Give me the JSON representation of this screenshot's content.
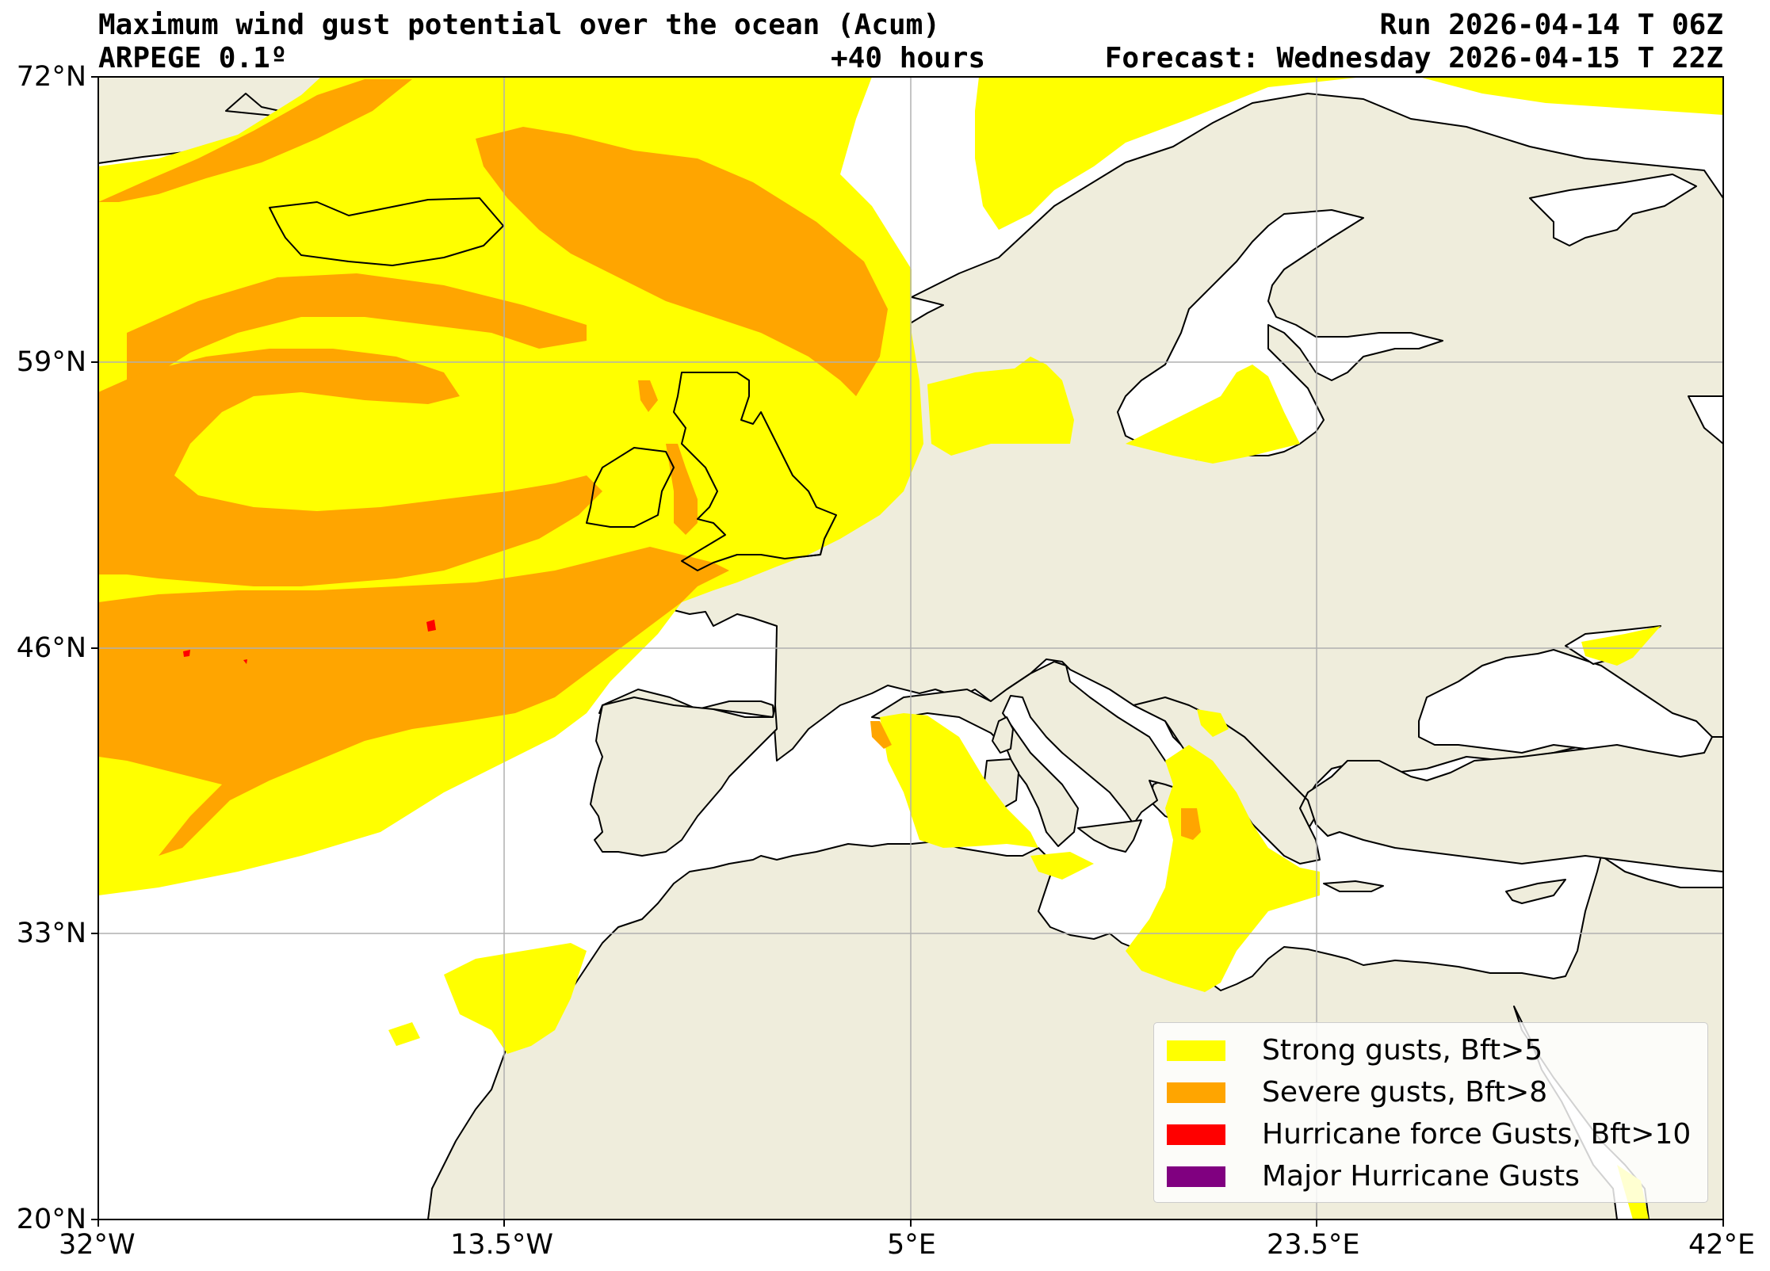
{
  "header": {
    "title_line1": "Maximum wind gust potential over the ocean (Acum)",
    "title_line2": "ARPEGE 0.1º",
    "lead_time": "+40 hours",
    "run": "Run 2026-04-14 T 06Z",
    "forecast": "Forecast: Wednesday 2026-04-15 T 22Z"
  },
  "axes": {
    "lat_ticks": [
      "72°N",
      "59°N",
      "46°N",
      "33°N",
      "20°N"
    ],
    "lon_ticks": [
      "32°W",
      "13.5°W",
      "5°E",
      "23.5°E",
      "42°E"
    ],
    "lat_range": [
      20,
      72
    ],
    "lon_range": [
      -32,
      42
    ],
    "grid": true
  },
  "legend": {
    "placement": "lower-right",
    "items": [
      {
        "label": "Strong gusts, Bft>5",
        "color": "#ffff00"
      },
      {
        "label": "Severe gusts, Bft>8",
        "color": "#ffa500"
      },
      {
        "label": "Hurricane force Gusts, Bft>10",
        "color": "#ff0000"
      },
      {
        "label": "Major Hurricane Gusts",
        "color": "#800080"
      }
    ]
  },
  "colors": {
    "land": "#efeddc",
    "sea": "#ffffff",
    "grid": "#b0b0b0",
    "coast": "#000000"
  }
}
